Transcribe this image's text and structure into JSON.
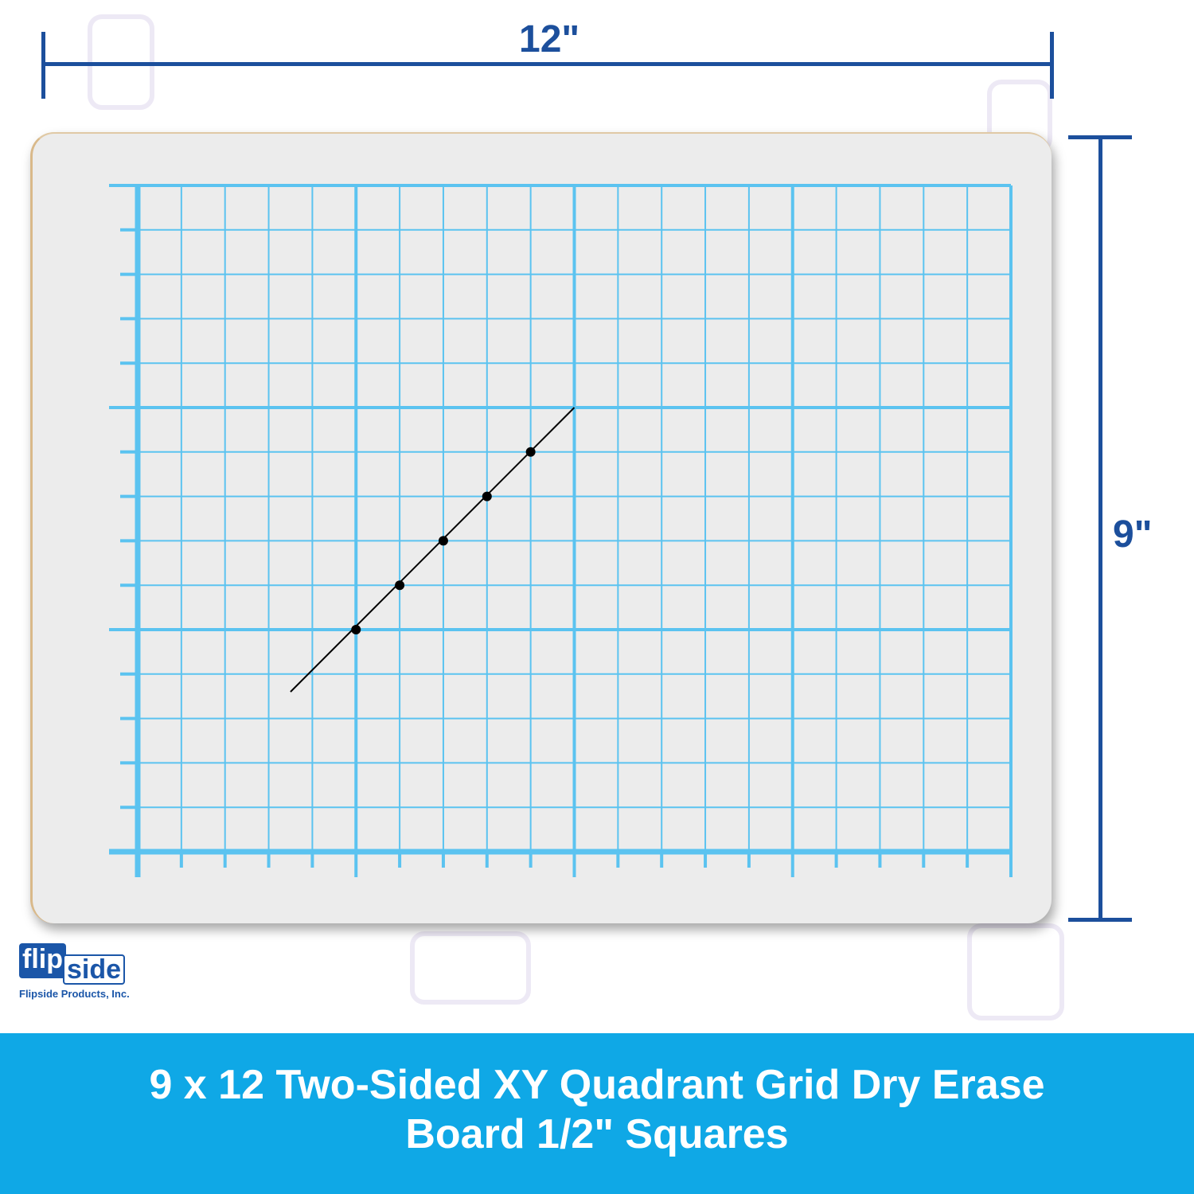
{
  "dimensions": {
    "width_label": "12\"",
    "height_label": "9\""
  },
  "board": {
    "grid_columns": 20,
    "grid_rows": 15,
    "major_every": 5,
    "grid_color": "#5bc3f0",
    "line_color": "#000000",
    "plotted_points_grid": [
      [
        5,
        5
      ],
      [
        6,
        6
      ],
      [
        7,
        7
      ],
      [
        8,
        8
      ],
      [
        9,
        9
      ]
    ],
    "line_from_grid": [
      3.5,
      3.6
    ],
    "line_to_grid": [
      10,
      10
    ]
  },
  "logo": {
    "part1": "flip",
    "part2": "side",
    "company": "Flipside Products, Inc."
  },
  "banner": {
    "line1": "9 x 12 Two-Sided XY Quadrant Grid Dry Erase",
    "line2": "Board 1/2\" Squares",
    "color": "#0fa8e6"
  }
}
